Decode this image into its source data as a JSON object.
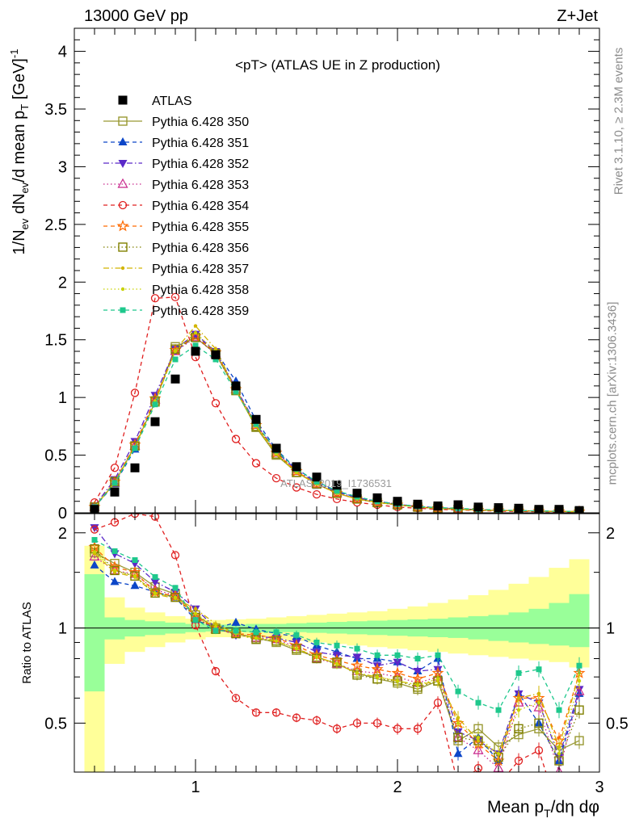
{
  "header": {
    "energy": "13000 GeV pp",
    "process": "Z+Jet"
  },
  "side_labels": {
    "rivet": "Rivet 3.1.10, ≥ 2.3M events",
    "mcplots": "mcplots.cern.ch [arXiv:1306.3436]"
  },
  "chart_data": [
    {
      "type": "scatter",
      "title": "<pT> (ATLAS UE in Z production)",
      "watermark": "ATLAS_2019_I1736531",
      "xlim": [
        0.4,
        3.0
      ],
      "ylim": [
        0,
        4.2
      ],
      "yticks": [
        0,
        0.5,
        1,
        1.5,
        2,
        2.5,
        3,
        3.5,
        4
      ],
      "ytick_labels": [
        "0",
        "0.5",
        "1",
        "1.5",
        "2",
        "2.5",
        "3",
        "3.5",
        "4"
      ],
      "ylabel": "1/N_ev dN_ev/d mean p_T [GeV]^-1",
      "x": [
        0.5,
        0.6,
        0.7,
        0.8,
        0.9,
        1.0,
        1.1,
        1.2,
        1.3,
        1.4,
        1.5,
        1.6,
        1.7,
        1.8,
        1.9,
        2.0,
        2.1,
        2.2,
        2.3,
        2.4,
        2.5,
        2.6,
        2.7,
        2.8,
        2.9
      ],
      "series": [
        {
          "name": "ATLAS",
          "color": "#000000",
          "marker": "filled-square",
          "line": "none",
          "values": [
            0.03,
            0.18,
            0.39,
            0.79,
            1.16,
            1.4,
            1.37,
            1.1,
            0.81,
            0.56,
            0.4,
            0.31,
            0.24,
            0.17,
            0.13,
            0.1,
            0.075,
            0.06,
            0.07,
            0.05,
            0.045,
            0.04,
            0.03,
            0.03,
            0.02
          ]
        },
        {
          "name": "Pythia 6.428 350",
          "color": "#999933",
          "marker": "open-square",
          "line": "solid",
          "values": [
            0.05,
            0.26,
            0.58,
            0.96,
            1.44,
            1.52,
            1.38,
            1.06,
            0.74,
            0.5,
            0.35,
            0.25,
            0.17,
            0.12,
            0.09,
            0.07,
            0.05,
            0.04,
            0.03,
            0.025,
            0.02,
            0.018,
            0.015,
            0.012,
            0.01
          ]
        },
        {
          "name": "Pythia 6.428 351",
          "color": "#0c46c8",
          "marker": "filled-triangle-up",
          "line": "dashed",
          "values": [
            0.05,
            0.25,
            0.55,
            0.98,
            1.4,
            1.53,
            1.4,
            1.14,
            0.8,
            0.55,
            0.38,
            0.27,
            0.19,
            0.13,
            0.1,
            0.075,
            0.055,
            0.045,
            0.035,
            0.028,
            0.022,
            0.018,
            0.015,
            0.012,
            0.01
          ]
        },
        {
          "name": "Pythia 6.428 352",
          "color": "#5a28c8",
          "marker": "filled-triangle-down",
          "line": "dashdot",
          "values": [
            0.06,
            0.29,
            0.62,
            1.02,
            1.42,
            1.55,
            1.4,
            1.08,
            0.77,
            0.53,
            0.37,
            0.26,
            0.18,
            0.13,
            0.1,
            0.075,
            0.055,
            0.045,
            0.035,
            0.028,
            0.022,
            0.018,
            0.015,
            0.012,
            0.01
          ]
        },
        {
          "name": "Pythia 6.428 353",
          "color": "#c8288c",
          "marker": "open-triangle-up",
          "line": "dotted",
          "values": [
            0.05,
            0.26,
            0.58,
            0.98,
            1.4,
            1.52,
            1.38,
            1.07,
            0.76,
            0.52,
            0.36,
            0.25,
            0.17,
            0.12,
            0.09,
            0.07,
            0.05,
            0.04,
            0.03,
            0.025,
            0.02,
            0.018,
            0.015,
            0.012,
            0.01
          ]
        },
        {
          "name": "Pythia 6.428 354",
          "color": "#e02020",
          "marker": "open-circle",
          "line": "dashed",
          "values": [
            0.09,
            0.39,
            1.04,
            1.86,
            1.87,
            1.35,
            0.95,
            0.64,
            0.43,
            0.3,
            0.22,
            0.16,
            0.12,
            0.09,
            0.07,
            0.05,
            0.04,
            0.03,
            0.025,
            0.02,
            0.015,
            0.012,
            0.01,
            0.008,
            0.006
          ]
        },
        {
          "name": "Pythia 6.428 355",
          "color": "#ff6a00",
          "marker": "open-star",
          "line": "dashed",
          "values": [
            0.05,
            0.27,
            0.59,
            0.99,
            1.41,
            1.53,
            1.39,
            1.07,
            0.76,
            0.52,
            0.36,
            0.25,
            0.17,
            0.12,
            0.09,
            0.07,
            0.05,
            0.04,
            0.03,
            0.025,
            0.02,
            0.018,
            0.015,
            0.012,
            0.01
          ]
        },
        {
          "name": "Pythia 6.428 356",
          "color": "#808000",
          "marker": "open-square",
          "line": "dotted",
          "values": [
            0.05,
            0.27,
            0.58,
            0.97,
            1.42,
            1.52,
            1.38,
            1.06,
            0.75,
            0.51,
            0.35,
            0.25,
            0.17,
            0.12,
            0.09,
            0.07,
            0.05,
            0.04,
            0.03,
            0.025,
            0.02,
            0.018,
            0.015,
            0.012,
            0.01
          ]
        },
        {
          "name": "Pythia 6.428 357",
          "color": "#d2b400",
          "marker": "small-dot",
          "line": "dashdot",
          "values": [
            0.05,
            0.26,
            0.57,
            0.96,
            1.41,
            1.62,
            1.42,
            1.06,
            0.75,
            0.51,
            0.35,
            0.25,
            0.17,
            0.12,
            0.09,
            0.07,
            0.05,
            0.04,
            0.03,
            0.025,
            0.02,
            0.018,
            0.015,
            0.012,
            0.01
          ]
        },
        {
          "name": "Pythia 6.428 358",
          "color": "#c8d200",
          "marker": "small-dot",
          "line": "dotted",
          "values": [
            0.05,
            0.26,
            0.57,
            0.97,
            1.4,
            1.56,
            1.4,
            1.06,
            0.75,
            0.51,
            0.35,
            0.25,
            0.17,
            0.12,
            0.09,
            0.07,
            0.05,
            0.04,
            0.03,
            0.025,
            0.02,
            0.018,
            0.015,
            0.012,
            0.01
          ]
        },
        {
          "name": "Pythia 6.428 359",
          "color": "#1ec88c",
          "marker": "filled-square-small",
          "line": "dashed",
          "values": [
            0.05,
            0.26,
            0.56,
            0.94,
            1.33,
            1.45,
            1.33,
            1.05,
            0.77,
            0.54,
            0.38,
            0.27,
            0.19,
            0.14,
            0.1,
            0.075,
            0.055,
            0.045,
            0.04,
            0.03,
            0.025,
            0.02,
            0.017,
            0.014,
            0.012
          ]
        }
      ]
    },
    {
      "type": "line",
      "ylabel": "Ratio to ATLAS",
      "xlabel": "Mean p_T/dη dφ",
      "xlim": [
        0.4,
        3.0
      ],
      "ylim": [
        0.35,
        2.3
      ],
      "xticks": [
        1,
        2,
        3
      ],
      "xtick_labels": [
        "1",
        "2",
        "3"
      ],
      "yticks": [
        0.5,
        1,
        2
      ],
      "ytick_labels": [
        "0.5",
        "1",
        "2"
      ],
      "reference_line": 1,
      "bin_edges": [
        0.45,
        0.55,
        0.65,
        0.75,
        0.85,
        0.95,
        1.05,
        1.15,
        1.25,
        1.35,
        1.45,
        1.55,
        1.65,
        1.75,
        1.85,
        1.95,
        2.05,
        2.15,
        2.25,
        2.35,
        2.45,
        2.55,
        2.65,
        2.75,
        2.85,
        2.95
      ],
      "stat_band": {
        "color": "#99ff99",
        "lower": [
          0.63,
          0.92,
          0.94,
          0.95,
          0.96,
          0.97,
          0.975,
          0.975,
          0.97,
          0.97,
          0.97,
          0.965,
          0.96,
          0.955,
          0.95,
          0.945,
          0.94,
          0.935,
          0.93,
          0.92,
          0.91,
          0.9,
          0.89,
          0.88,
          0.87
        ],
        "upper": [
          1.48,
          1.08,
          1.06,
          1.05,
          1.04,
          1.03,
          1.025,
          1.025,
          1.03,
          1.03,
          1.035,
          1.04,
          1.045,
          1.05,
          1.055,
          1.06,
          1.065,
          1.07,
          1.08,
          1.09,
          1.1,
          1.12,
          1.15,
          1.2,
          1.28
        ]
      },
      "syst_band": {
        "color": "#ffff99",
        "lower": [
          0.35,
          0.77,
          0.84,
          0.87,
          0.9,
          0.92,
          0.935,
          0.935,
          0.93,
          0.92,
          0.91,
          0.9,
          0.89,
          0.88,
          0.87,
          0.86,
          0.85,
          0.84,
          0.83,
          0.82,
          0.81,
          0.8,
          0.79,
          0.78,
          0.75
        ],
        "upper": [
          1.82,
          1.25,
          1.16,
          1.12,
          1.09,
          1.07,
          1.06,
          1.065,
          1.07,
          1.08,
          1.09,
          1.1,
          1.11,
          1.12,
          1.13,
          1.15,
          1.17,
          1.2,
          1.23,
          1.27,
          1.32,
          1.38,
          1.45,
          1.55,
          1.65
        ]
      },
      "x": [
        0.5,
        0.6,
        0.7,
        0.8,
        0.9,
        1.0,
        1.1,
        1.2,
        1.3,
        1.4,
        1.5,
        1.6,
        1.7,
        1.8,
        1.9,
        2.0,
        2.1,
        2.2,
        2.3,
        2.4,
        2.5,
        2.6,
        2.7,
        2.8,
        2.9
      ],
      "series": [
        {
          "name": "Pythia 6.428 350",
          "values": [
            1.73,
            1.6,
            1.5,
            1.35,
            1.28,
            1.1,
            1.0,
            0.96,
            0.93,
            0.9,
            0.85,
            0.81,
            0.77,
            0.72,
            0.69,
            0.67,
            0.64,
            0.68,
            0.44,
            0.48,
            0.42,
            0.46,
            0.48,
            0.41,
            0.44
          ]
        },
        {
          "name": "Pythia 6.428 351",
          "values": [
            1.58,
            1.4,
            1.36,
            1.3,
            1.25,
            1.06,
            1.0,
            1.04,
            0.99,
            0.96,
            0.94,
            0.88,
            0.84,
            0.8,
            0.8,
            0.78,
            0.73,
            0.8,
            0.4,
            0.45,
            0.38,
            0.62,
            0.5,
            0.38,
            0.62
          ]
        },
        {
          "name": "Pythia 6.428 352",
          "values": [
            2.08,
            1.72,
            1.6,
            1.4,
            1.3,
            1.15,
            1.0,
            0.95,
            0.94,
            0.93,
            0.9,
            0.84,
            0.82,
            0.81,
            0.76,
            0.78,
            0.73,
            0.74,
            0.47,
            0.44,
            0.4,
            0.62,
            0.58,
            0.39,
            0.64
          ]
        },
        {
          "name": "Pythia 6.428 353",
          "values": [
            1.68,
            1.52,
            1.48,
            1.32,
            1.27,
            1.08,
            0.99,
            0.96,
            0.93,
            0.92,
            0.87,
            0.8,
            0.77,
            0.73,
            0.72,
            0.7,
            0.67,
            0.7,
            0.45,
            0.41,
            0.36,
            0.58,
            0.56,
            0.35,
            0.63
          ]
        },
        {
          "name": "Pythia 6.428 354",
          "values": [
            2.05,
            2.16,
            2.3,
            2.25,
            1.7,
            1.02,
            0.73,
            0.6,
            0.54,
            0.54,
            0.52,
            0.51,
            0.48,
            0.5,
            0.5,
            0.48,
            0.48,
            0.58,
            0.32,
            0.36,
            0.32,
            0.38,
            0.41,
            0.26,
            0.3
          ]
        },
        {
          "name": "Pythia 6.428 355",
          "values": [
            1.8,
            1.56,
            1.5,
            1.3,
            1.26,
            1.09,
            1.0,
            0.96,
            0.95,
            0.93,
            0.88,
            0.82,
            0.79,
            0.76,
            0.74,
            0.72,
            0.69,
            0.72,
            0.5,
            0.43,
            0.38,
            0.6,
            0.6,
            0.44,
            0.72
          ]
        },
        {
          "name": "Pythia 6.428 356",
          "values": [
            1.78,
            1.52,
            1.46,
            1.29,
            1.25,
            1.08,
            0.99,
            0.96,
            0.92,
            0.91,
            0.86,
            0.8,
            0.78,
            0.71,
            0.69,
            0.68,
            0.65,
            0.68,
            0.45,
            0.44,
            0.39,
            0.48,
            0.5,
            0.38,
            0.55
          ]
        },
        {
          "name": "Pythia 6.428 357",
          "values": [
            1.72,
            1.5,
            1.45,
            1.28,
            1.24,
            1.15,
            1.03,
            0.96,
            0.93,
            0.91,
            0.86,
            0.81,
            0.77,
            0.72,
            0.7,
            0.68,
            0.66,
            0.68,
            0.52,
            0.44,
            0.4,
            0.6,
            0.62,
            0.42,
            0.72
          ]
        },
        {
          "name": "Pythia 6.428 358",
          "values": [
            1.74,
            1.52,
            1.46,
            1.29,
            1.25,
            1.11,
            1.01,
            0.96,
            0.93,
            0.91,
            0.86,
            0.81,
            0.77,
            0.72,
            0.7,
            0.68,
            0.66,
            0.69,
            0.5,
            0.45,
            0.4,
            0.55,
            0.58,
            0.4,
            0.68
          ]
        },
        {
          "name": "Pythia 6.428 359",
          "values": [
            1.9,
            1.75,
            1.64,
            1.45,
            1.34,
            1.06,
            0.98,
            0.98,
            0.97,
            0.97,
            0.95,
            0.9,
            0.88,
            0.86,
            0.82,
            0.82,
            0.8,
            0.82,
            0.63,
            0.58,
            0.55,
            0.72,
            0.74,
            0.55,
            0.76
          ]
        }
      ]
    }
  ]
}
